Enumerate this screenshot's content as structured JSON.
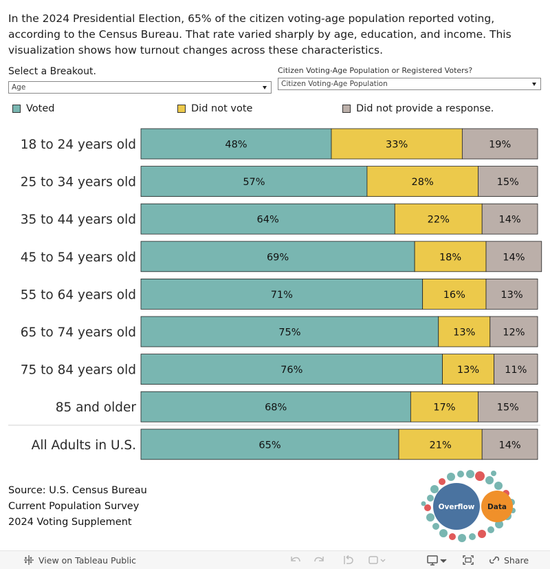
{
  "intro_text": "In the 2024 Presidential Election, 65% of the citizen voting-age population reported voting, according to the Census Bureau. That rate varied sharply by age, education, and income. This visualization shows how turnout changes across these characteristics.",
  "controls": {
    "breakout_label": "Select a Breakout.",
    "breakout_value": "Age",
    "population_label": "Citizen Voting-Age Population or Registered Voters?",
    "population_value": "Citizen Voting-Age Population"
  },
  "colors": {
    "voted": "#79b6b1",
    "did_not_vote": "#ecc94b",
    "no_response": "#bbafa9"
  },
  "chart_data": {
    "type": "bar",
    "orientation": "horizontal",
    "stacked": true,
    "percent_stacked": true,
    "categories": [
      "18 to 24 years old",
      "25 to 34 years old",
      "35 to 44 years old",
      "45 to 54 years old",
      "55 to 64 years old",
      "65 to 74 years old",
      "75 to 84 years old",
      "85 and older",
      "All Adults in U.S."
    ],
    "series": [
      {
        "name": "Voted",
        "values": [
          48,
          57,
          64,
          69,
          71,
          75,
          76,
          68,
          65
        ]
      },
      {
        "name": "Did not vote",
        "values": [
          33,
          28,
          22,
          18,
          16,
          13,
          13,
          17,
          21
        ]
      },
      {
        "name": "Did not provide a response.",
        "values": [
          19,
          15,
          14,
          14,
          13,
          12,
          11,
          15,
          14
        ]
      }
    ],
    "data_labels": [
      [
        "48%",
        "57%",
        "64%",
        "69%",
        "71%",
        "75%",
        "76%",
        "68%",
        "65%"
      ],
      [
        "33%",
        "28%",
        "22%",
        "18%",
        "16%",
        "13%",
        "13%",
        "17%",
        "21%"
      ],
      [
        "19%",
        "15%",
        "14%",
        "14%",
        "13%",
        "12%",
        "11%",
        "15%",
        "14%"
      ]
    ],
    "legend": [
      "Voted",
      "Did not vote",
      "Did not provide a response."
    ],
    "legend_position": "top",
    "xlim": [
      0,
      100
    ]
  },
  "source_lines": [
    "Source: U.S. Census Bureau",
    "Current Population Survey",
    "2024 Voting Supplement"
  ],
  "logo": {
    "left_word": "Overflow",
    "right_word": "Data"
  },
  "toolbar": {
    "view_label": "View on Tableau Public",
    "share_label": "Share"
  }
}
